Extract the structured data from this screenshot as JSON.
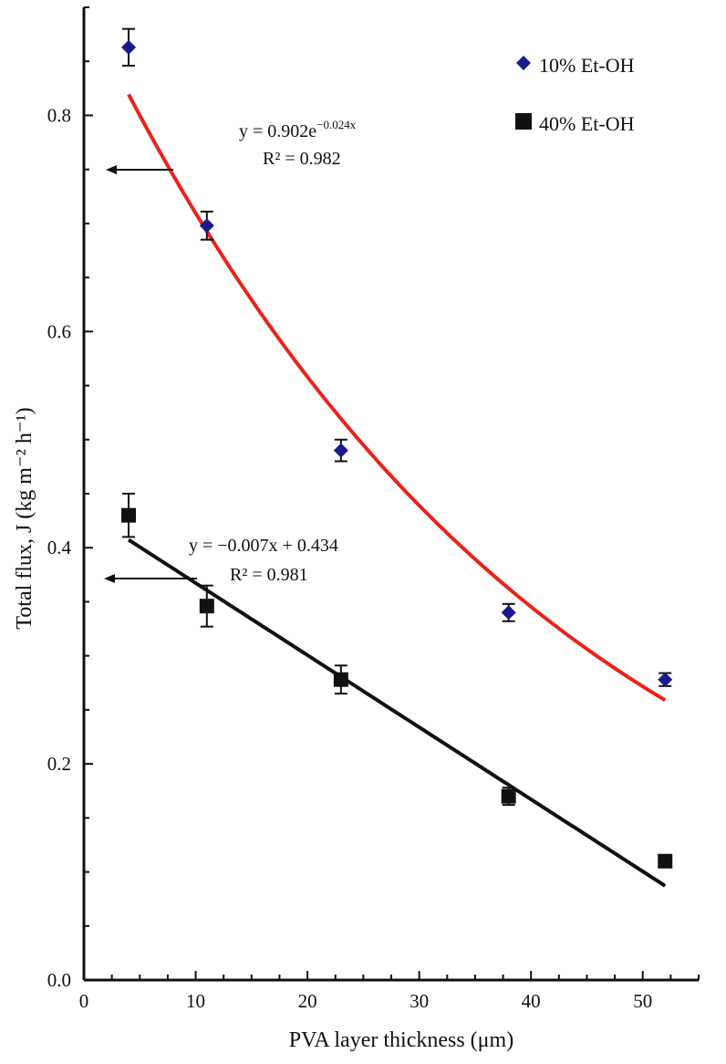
{
  "chart_data": {
    "type": "scatter",
    "xlabel": "PVA layer thickness (μm)",
    "ylabel": "Total flux, J (kg m⁻² h⁻¹)",
    "xlim": [
      0,
      55
    ],
    "ylim": [
      0,
      0.9
    ],
    "xticks": [
      0,
      10,
      20,
      30,
      40,
      50
    ],
    "xtick_labels": [
      "0",
      "10",
      "20",
      "30",
      "40",
      "50"
    ],
    "yticks": [
      0,
      0.2,
      0.4,
      0.6,
      0.8
    ],
    "ytick_labels": [
      "0.0",
      "0.2",
      "0.4",
      "0.6",
      "0.8"
    ],
    "legend_position": "top-right",
    "grid": false,
    "series": [
      {
        "name": "10% Et-OH",
        "marker": "diamond",
        "color": "#1a1a8c",
        "x": [
          4,
          11,
          23,
          38,
          52
        ],
        "y": [
          0.863,
          0.698,
          0.49,
          0.34,
          0.278
        ],
        "yerr": [
          0.017,
          0.013,
          0.01,
          0.008,
          0.006
        ],
        "fit": {
          "kind": "exponential",
          "a": 0.902,
          "b": -0.024,
          "x_range": [
            4,
            52
          ],
          "color": "#e8231c",
          "equation": "y = 0.902e",
          "exponent": "−0.024x",
          "r2_label": "R² = 0.982"
        }
      },
      {
        "name": "40% Et-OH",
        "marker": "square",
        "color": "#111111",
        "x": [
          4,
          11,
          23,
          38,
          52
        ],
        "y": [
          0.43,
          0.346,
          0.278,
          0.17,
          0.11
        ],
        "yerr": [
          0.02,
          0.019,
          0.013,
          0.008,
          0.005
        ],
        "fit": {
          "kind": "linear",
          "slope": -0.00667,
          "intercept": 0.434,
          "x_range": [
            4,
            52
          ],
          "color": "#111111",
          "equation": "y = −0.007x + 0.434",
          "r2_label": "R² = 0.981"
        }
      }
    ]
  }
}
